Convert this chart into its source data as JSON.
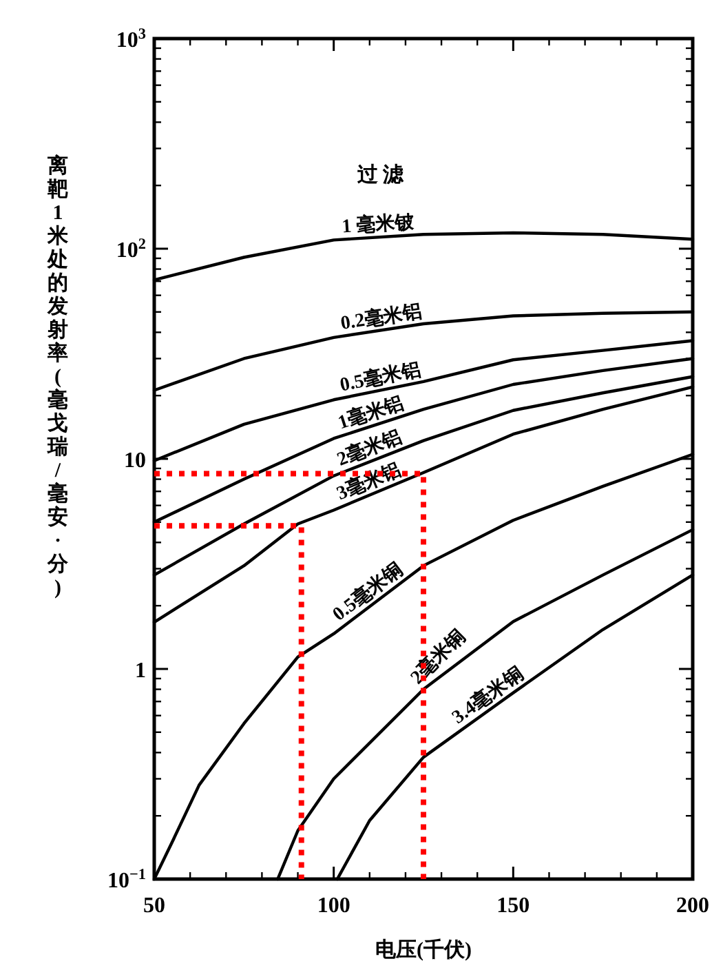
{
  "chart_data": {
    "type": "line",
    "xlabel": "电压(千伏)",
    "ylabel": "离靶1米处的发射率(毫戈瑞/毫安·分)",
    "annotations": [
      "过 滤"
    ],
    "log": "y",
    "xlim": [
      50,
      200
    ],
    "xticks": [
      50,
      100,
      150,
      200
    ],
    "ylim": [
      0.1,
      1000
    ],
    "yticks": [
      {
        "value": 0.1,
        "label": "10$^{−1}$"
      },
      1,
      10,
      {
        "value": 100,
        "label": "10$^{2}$"
      },
      {
        "value": 1000,
        "label": "10$^{3}$"
      }
    ],
    "series": [
      {
        "name": "1 毫米铍",
        "color": "#000000",
        "x": [
          50,
          75,
          100,
          125,
          150,
          175,
          200
        ],
        "values": [
          71,
          91,
          110,
          117,
          119,
          117,
          111
        ]
      },
      {
        "name": "0.2毫米铝",
        "color": "#000000",
        "x": [
          50,
          75,
          100,
          125,
          150,
          175,
          200
        ],
        "values": [
          21.2,
          30,
          37.8,
          43.9,
          47.9,
          49.3,
          50
        ]
      },
      {
        "name": "0.5毫米铝",
        "color": "#000000",
        "x": [
          50,
          75,
          100,
          125,
          150,
          175,
          200
        ],
        "values": [
          9.8,
          14.6,
          19.1,
          23.3,
          29.6,
          32.8,
          36.5
        ]
      },
      {
        "name": "1毫米铝",
        "color": "#000000",
        "x": [
          50,
          75,
          100,
          125,
          150,
          175,
          200
        ],
        "values": [
          5,
          8,
          12.5,
          17.2,
          22.6,
          26.3,
          30
        ]
      },
      {
        "name": "2毫米铝",
        "color": "#000000",
        "x": [
          50,
          75,
          100,
          125,
          150,
          175,
          200
        ],
        "values": [
          2.8,
          4.9,
          8.3,
          12.2,
          17,
          20.6,
          24.6
        ]
      },
      {
        "name": "3毫米铝",
        "color": "#000000",
        "x": [
          50,
          75,
          90,
          100,
          125,
          150,
          175,
          200
        ],
        "values": [
          1.67,
          3.1,
          4.9,
          5.7,
          8.6,
          13.1,
          17.2,
          22
        ]
      },
      {
        "name": "0.5毫米铜",
        "color": "#000000",
        "x": [
          50,
          55,
          62.5,
          75,
          90,
          100,
          125,
          150,
          175,
          200
        ],
        "values": [
          0.1,
          0.15,
          0.28,
          0.55,
          1.14,
          1.47,
          3.1,
          5.1,
          7.4,
          10.5
        ]
      },
      {
        "name": "2毫米铜",
        "color": "#000000",
        "x": [
          84.4,
          90,
          100,
          125,
          150,
          175,
          200
        ],
        "values": [
          0.1,
          0.17,
          0.3,
          0.8,
          1.68,
          2.8,
          4.6
        ]
      },
      {
        "name": "3.4毫米铜",
        "color": "#000000",
        "x": [
          101,
          110,
          125,
          150,
          175,
          200
        ],
        "values": [
          0.1,
          0.19,
          0.38,
          0.77,
          1.54,
          2.8
        ]
      },
      {
        "color": "#ff0000",
        "line_style": "dotted",
        "x": [
          50,
          91,
          91
        ],
        "values": [
          4.8,
          4.8,
          0.1
        ]
      },
      {
        "color": "#ff0000",
        "line_style": "dotted",
        "x": [
          50,
          125,
          125
        ],
        "values": [
          8.5,
          8.5,
          0.1
        ]
      }
    ]
  }
}
